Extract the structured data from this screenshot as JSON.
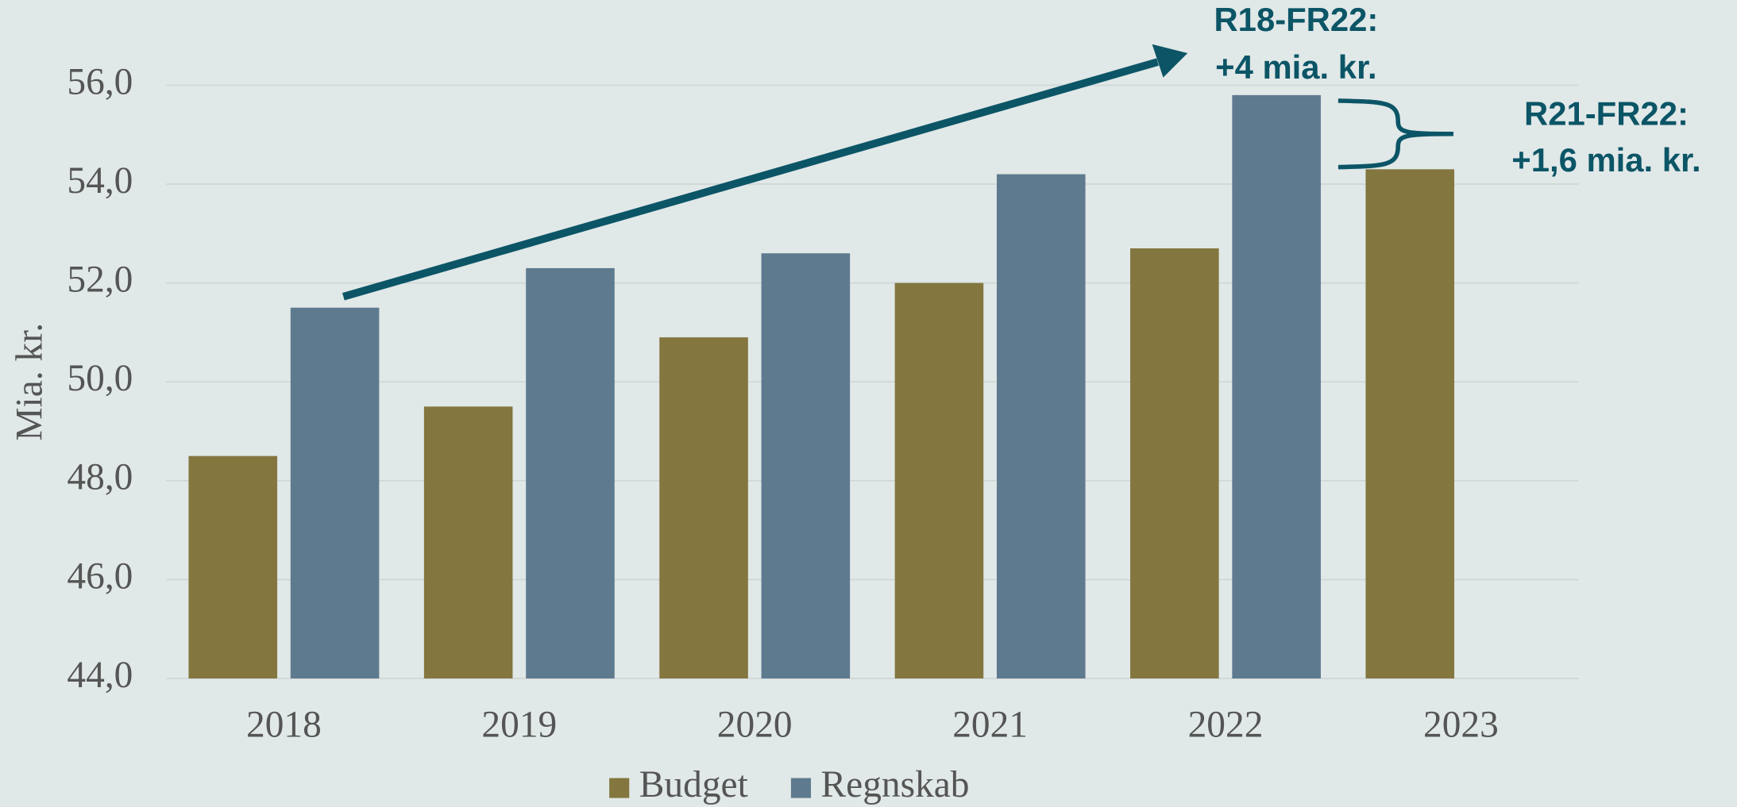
{
  "chart_data": {
    "type": "bar",
    "categories": [
      "2018",
      "2019",
      "2020",
      "2021",
      "2022",
      "2023"
    ],
    "series": [
      {
        "name": "Budget",
        "color": "#83763f",
        "values": [
          48.5,
          49.5,
          50.9,
          52.0,
          52.7,
          54.3
        ]
      },
      {
        "name": "Regnskab",
        "color": "#5e7a8f",
        "values": [
          51.5,
          52.3,
          52.6,
          54.2,
          55.8,
          null
        ]
      }
    ],
    "ylabel": "Mia. kr.",
    "ylim": [
      44,
      56
    ],
    "yticks": [
      {
        "value": 44,
        "label": "44,0"
      },
      {
        "value": 46,
        "label": "46,0"
      },
      {
        "value": 48,
        "label": "48,0"
      },
      {
        "value": 50,
        "label": "50,0"
      },
      {
        "value": 52,
        "label": "52,0"
      },
      {
        "value": 54,
        "label": "54,0"
      },
      {
        "value": 56,
        "label": "56,0"
      }
    ],
    "grid": true,
    "legend": "bottom",
    "annotations": [
      {
        "lines": [
          "R18-FR22:",
          "+4 mia. kr."
        ]
      },
      {
        "lines": [
          "R21-FR22:",
          "+1,6 mia. kr."
        ]
      }
    ]
  }
}
